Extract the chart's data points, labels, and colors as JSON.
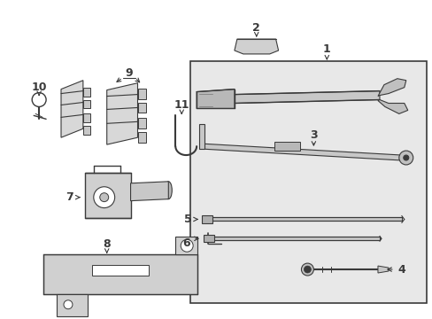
{
  "bg_color": "#ffffff",
  "line_color": "#3a3a3a",
  "box_bg": "#e8e8e8",
  "fig_width": 4.89,
  "fig_height": 3.6,
  "dpi": 100
}
